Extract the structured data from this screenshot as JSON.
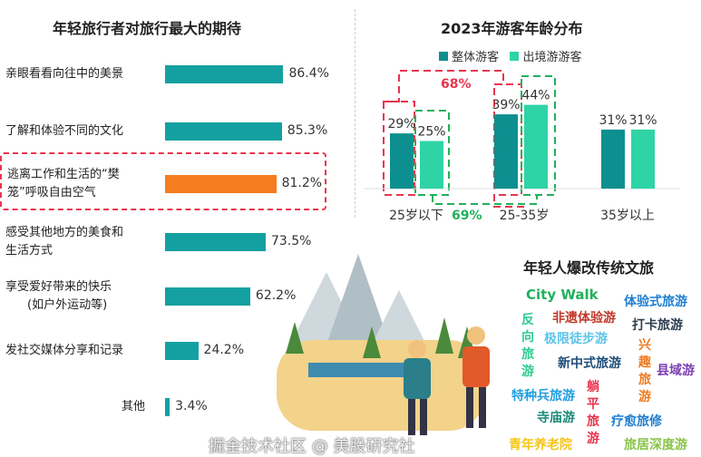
{
  "left_chart": {
    "title": "年轻旅行者对旅行最大的期待"
  },
  "right_chart": {
    "title": "2023年游客年龄分布",
    "legend": [
      "整体游客",
      "出境游游客"
    ],
    "annotations": [
      "68%",
      "69%"
    ]
  },
  "word_cloud": {
    "title": "年轻人爆改传统文旅",
    "words": [
      "City Walk",
      "体验式旅游",
      "非遗体验游",
      "打卡旅游",
      "反向旅游",
      "极限徒步游",
      "新中式旅游",
      "兴趣旅游",
      "县域游",
      "特种兵旅游",
      "躺平旅游",
      "寺庙游",
      "疗愈旅修",
      "青年养老院",
      "旅居深度游"
    ]
  },
  "watermark": "掘金技术社区 @ 美股研究社",
  "chart_data": [
    {
      "type": "bar",
      "orientation": "horizontal",
      "title": "年轻旅行者对旅行最大的期待",
      "categories": [
        "亲眼看看向往中的美景",
        "了解和体验不同的文化",
        "逃离工作和生活的“樊笼”呼吸自由空气",
        "感受其他地方的美食和生活方式",
        "享受爱好带来的快乐(如户外运动等)",
        "发社交媒体分享和记录",
        "其他"
      ],
      "label_lines": [
        [
          "亲眼看看向往中的美景"
        ],
        [
          "了解和体验不同的文化"
        ],
        [
          "逃离工作和生活的“樊",
          "笼”呼吸自由空气"
        ],
        [
          "感受其他地方的美食和",
          "生活方式"
        ],
        [
          "享受爱好带来的快乐",
          "(如户外运动等)"
        ],
        [
          "发社交媒体分享和记录"
        ],
        [
          "其他"
        ]
      ],
      "values": [
        86.4,
        85.3,
        81.2,
        73.5,
        62.2,
        24.2,
        3.4
      ],
      "value_labels": [
        "86.4%",
        "85.3%",
        "81.2%",
        "73.5%",
        "62.2%",
        "24.2%",
        "3.4%"
      ],
      "highlight_index": 2,
      "colors": {
        "default": "#14a0a0",
        "highlight": "#f57c1f"
      }
    },
    {
      "type": "bar",
      "title": "2023年游客年龄分布",
      "categories": [
        "25岁以下",
        "25-35岁",
        "35岁以上"
      ],
      "series": [
        {
          "name": "整体游客",
          "values": [
            29,
            39,
            31
          ],
          "color": "#0e8f8f"
        },
        {
          "name": "出境游游客",
          "values": [
            25,
            44,
            31
          ],
          "color": "#2fd4a6"
        }
      ],
      "ylim": [
        0,
        50
      ]
    }
  ]
}
